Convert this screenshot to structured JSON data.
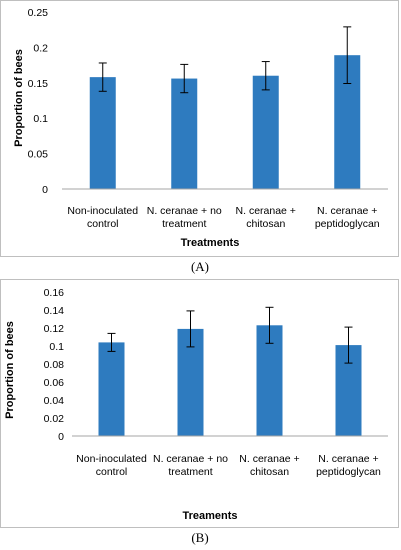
{
  "chart_data": [
    {
      "type": "bar",
      "panel_label": "(A)",
      "categories": [
        "Non-inoculated control",
        "N. ceranae + no treatment",
        "N. ceranae + chitosan",
        "N. ceranae + peptidoglycan"
      ],
      "category_lines": [
        [
          "Non-inoculated",
          "control"
        ],
        [
          "N. ceranae + no",
          "treatment"
        ],
        [
          "N. ceranae +",
          "chitosan"
        ],
        [
          "N. ceranae +",
          "peptidoglycan"
        ]
      ],
      "values": [
        0.158,
        0.156,
        0.16,
        0.189
      ],
      "errors": [
        0.02,
        0.02,
        0.02,
        0.04
      ],
      "xlabel": "Treatments",
      "ylabel": "Proportion of bees",
      "ylim": [
        0,
        0.25
      ],
      "yticks": [
        "0",
        "0.05",
        "0.1",
        "0.15",
        "0.2",
        "0.25"
      ],
      "bar_color": "#2e7bbf",
      "grid": false,
      "legend": "none"
    },
    {
      "type": "bar",
      "panel_label": "(B)",
      "categories": [
        "Non-inoculated control",
        "N. ceranae + no treatment",
        "N. ceranae + chitosan",
        "N. ceranae + peptidoglycan"
      ],
      "category_lines": [
        [
          "Non-inoculated",
          "control"
        ],
        [
          "N. ceranae + no",
          "treatment"
        ],
        [
          "N. ceranae +",
          "chitosan"
        ],
        [
          "N. ceranae +",
          "peptidoglycan"
        ]
      ],
      "values": [
        0.104,
        0.119,
        0.123,
        0.101
      ],
      "errors": [
        0.01,
        0.02,
        0.02,
        0.02
      ],
      "xlabel": "Treaments",
      "ylabel": "Proportion of bees",
      "ylim": [
        0,
        0.16
      ],
      "yticks": [
        "0",
        "0.02",
        "0.04",
        "0.06",
        "0.08",
        "0.1",
        "0.12",
        "0.14",
        "0.16"
      ],
      "bar_color": "#2e7bbf",
      "grid": false,
      "legend": "none"
    }
  ]
}
